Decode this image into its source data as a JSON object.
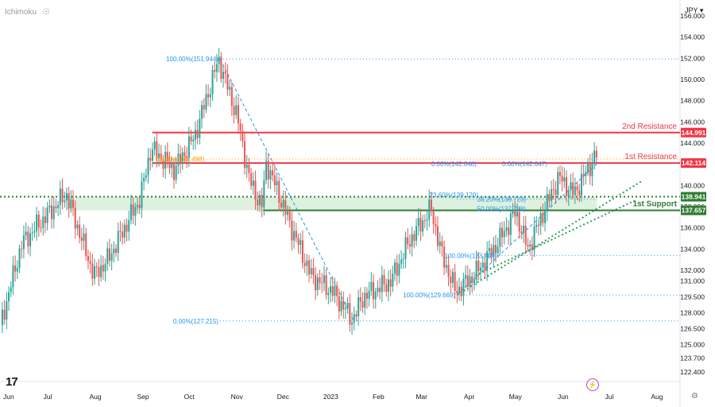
{
  "indicator": {
    "name": "Ichimoku",
    "eye_icon": "eye-icon"
  },
  "currency": "JPY",
  "chart_data": {
    "type": "candlestick",
    "symbol_currency": "JPY",
    "ylim": [
      121.5,
      157.5
    ],
    "y_ticks": [
      "156.000",
      "154.000",
      "152.000",
      "150.000",
      "148.000",
      "146.000",
      "144.000",
      "142.000",
      "140.000",
      "138.000",
      "136.000",
      "134.000",
      "132.000",
      "131.000",
      "129.500",
      "128.000",
      "126.500",
      "125.000",
      "123.700",
      "122.400"
    ],
    "x_labels": [
      "Jun",
      "Jul",
      "Aug",
      "Sep",
      "Oct",
      "Nov",
      "Dec",
      "2023",
      "Feb",
      "Mar",
      "Apr",
      "May",
      "Jun",
      "Jul",
      "Aug"
    ],
    "colors": {
      "up": "#26a69a",
      "down": "#ef5350",
      "resistance": "#f23645",
      "support": "#2e7d32",
      "support_zone": "#c8e6c9",
      "fib": "#2196f3",
      "fib_orange": "#ff9800"
    },
    "price_path": [
      [
        "2022-06-01",
        126.8
      ],
      [
        "2022-06-15",
        134.5
      ],
      [
        "2022-06-25",
        136.2
      ],
      [
        "2022-07-14",
        139.2
      ],
      [
        "2022-08-01",
        131.5
      ],
      [
        "2022-08-10",
        133.0
      ],
      [
        "2022-08-31",
        138.8
      ],
      [
        "2022-09-07",
        143.5
      ],
      [
        "2022-09-22",
        141.5
      ],
      [
        "2022-10-05",
        144.5
      ],
      [
        "2022-10-21",
        151.9
      ],
      [
        "2022-11-02",
        146.5
      ],
      [
        "2022-11-10",
        140.5
      ],
      [
        "2022-11-18",
        138.0
      ],
      [
        "2022-11-21",
        142.2
      ],
      [
        "2022-12-06",
        136.5
      ],
      [
        "2022-12-20",
        131.5
      ],
      [
        "2023-01-03",
        130.0
      ],
      [
        "2023-01-16",
        127.3
      ],
      [
        "2023-01-23",
        129.5
      ],
      [
        "2023-02-10",
        131.0
      ],
      [
        "2023-02-22",
        134.8
      ],
      [
        "2023-03-08",
        137.8
      ],
      [
        "2023-03-15",
        133.5
      ],
      [
        "2023-03-24",
        130.0
      ],
      [
        "2023-04-05",
        131.5
      ],
      [
        "2023-04-20",
        134.5
      ],
      [
        "2023-05-02",
        137.5
      ],
      [
        "2023-05-10",
        134.0
      ],
      [
        "2023-05-23",
        138.5
      ],
      [
        "2023-05-30",
        140.8
      ],
      [
        "2023-06-09",
        139.2
      ],
      [
        "2023-06-19",
        141.8
      ],
      [
        "2023-06-23",
        142.9
      ]
    ],
    "levels": [
      {
        "name": "2nd Resistance",
        "value": 144.991,
        "label": "144.991",
        "color": "#f23645"
      },
      {
        "name": "1st Resistance",
        "value": 142.114,
        "label": "142.114",
        "color": "#f23645"
      },
      {
        "name": "",
        "value": 138.941,
        "label": "138.941",
        "color": "#2e7d32"
      },
      {
        "name": "1st Support",
        "value": 137.657,
        "label": "137.657",
        "color": "#2e7d32"
      }
    ],
    "fibonacci": [
      {
        "label": "100.00%(151.944)",
        "value": 151.944
      },
      {
        "label": "61.80%(142.498)",
        "value": 142.498
      },
      {
        "label": "0.00%(127.215)",
        "value": 127.215
      },
      {
        "label": "0.00%(142.048)",
        "value": 142.048
      },
      {
        "label": "23.60%(139.120)",
        "value": 139.12
      },
      {
        "label": "38.20%(138.723)",
        "value": 138.723
      },
      {
        "label": "50.00%(137.798)",
        "value": 137.798
      },
      {
        "label": "0.00%(142.047)",
        "value": 142.047
      },
      {
        "label": "100.00%(133.400)",
        "value": 133.4
      },
      {
        "label": "100.00%(129.669)",
        "value": 129.669
      }
    ]
  }
}
